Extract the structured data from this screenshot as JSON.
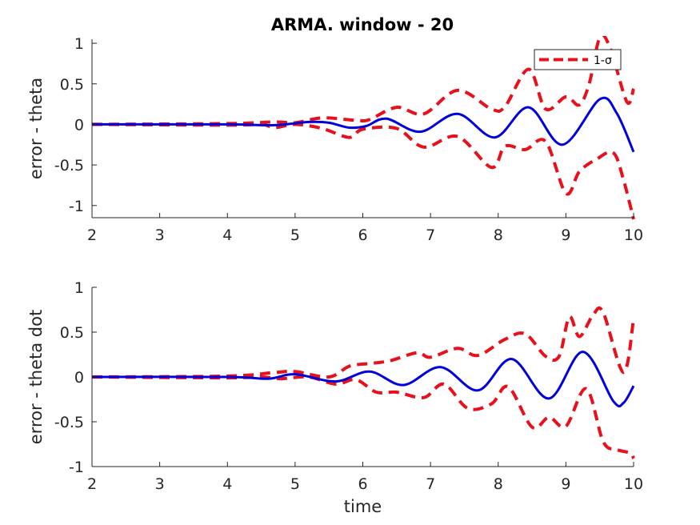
{
  "figure_title": "ARMA. window - 20",
  "colors": {
    "estimate": "#0000dd",
    "sigma": "#e8101a",
    "axis": "#262626"
  },
  "chart_data": [
    {
      "type": "line",
      "title": "ARMA. window - 20",
      "xlabel": "",
      "ylabel": "error - theta",
      "xlim": [
        2,
        10
      ],
      "ylim": [
        -1.15,
        1.05
      ],
      "xticks": [
        2,
        3,
        4,
        5,
        6,
        7,
        8,
        9,
        10
      ],
      "yticks": [
        -1,
        -0.5,
        0,
        0.5,
        1
      ],
      "legend": {
        "entries": [
          "1-σ"
        ],
        "location": "top-right"
      },
      "series": [
        {
          "name": "1-σ",
          "style": "dashed",
          "color": "#e8101a",
          "role": "upper",
          "x": [
            2,
            4.0,
            4.7,
            5.0,
            5.4,
            5.9,
            6.1,
            6.5,
            6.9,
            7.4,
            7.9,
            8.1,
            8.45,
            8.7,
            9.0,
            9.2,
            9.35,
            9.5,
            9.65,
            9.9,
            10.0
          ],
          "y": [
            0,
            0.01,
            0.03,
            0.02,
            0.08,
            0.05,
            0.06,
            0.21,
            0.13,
            0.42,
            0.19,
            0.22,
            0.68,
            0.19,
            0.34,
            0.24,
            0.52,
            1.07,
            0.95,
            0.28,
            0.44
          ]
        },
        {
          "name": "",
          "style": "dashed",
          "color": "#e8101a",
          "role": "lower",
          "x": [
            2,
            4.0,
            4.5,
            4.7,
            5.0,
            5.4,
            5.8,
            6.0,
            6.5,
            6.9,
            7.4,
            7.9,
            8.1,
            8.4,
            8.7,
            9.0,
            9.2,
            9.45,
            9.7,
            9.85,
            10.0
          ],
          "y": [
            0,
            -0.01,
            0.0,
            -0.04,
            0.0,
            -0.05,
            -0.16,
            -0.06,
            -0.05,
            -0.28,
            -0.15,
            -0.53,
            -0.27,
            -0.31,
            -0.21,
            -0.85,
            -0.58,
            -0.43,
            -0.35,
            -0.68,
            -1.17
          ]
        },
        {
          "name": "",
          "style": "solid",
          "color": "#0000dd",
          "role": "estimate",
          "x": [
            2,
            4.0,
            4.7,
            5.2,
            5.5,
            5.8,
            6.05,
            6.35,
            6.85,
            7.4,
            7.95,
            8.45,
            8.95,
            9.5,
            9.75,
            10.0
          ],
          "y": [
            0,
            0.0,
            -0.01,
            0.03,
            0.02,
            -0.04,
            -0.02,
            0.07,
            -0.09,
            0.13,
            -0.16,
            0.21,
            -0.25,
            0.31,
            0.14,
            -0.34
          ]
        }
      ]
    },
    {
      "type": "line",
      "title": "",
      "xlabel": "time",
      "ylabel": "error - theta dot",
      "xlim": [
        2,
        10
      ],
      "ylim": [
        -1,
        1
      ],
      "xticks": [
        2,
        3,
        4,
        5,
        6,
        7,
        8,
        9,
        10
      ],
      "yticks": [
        -1,
        -0.5,
        0,
        0.5,
        1
      ],
      "series": [
        {
          "name": "",
          "style": "dashed",
          "color": "#e8101a",
          "role": "upper",
          "x": [
            2,
            4.0,
            4.7,
            5.0,
            5.5,
            5.8,
            6.1,
            6.4,
            6.8,
            7.0,
            7.4,
            7.7,
            8.1,
            8.4,
            8.7,
            8.9,
            9.05,
            9.2,
            9.4,
            9.55,
            9.85,
            10.0
          ],
          "y": [
            0,
            0.01,
            0.05,
            0.06,
            0.0,
            0.12,
            0.15,
            0.18,
            0.27,
            0.22,
            0.32,
            0.24,
            0.42,
            0.48,
            0.23,
            0.23,
            0.67,
            0.45,
            0.69,
            0.72,
            0.05,
            0.65
          ]
        },
        {
          "name": "",
          "style": "dashed",
          "color": "#e8101a",
          "role": "lower",
          "x": [
            2,
            4.0,
            4.5,
            4.8,
            5.2,
            5.6,
            5.9,
            6.2,
            6.5,
            6.9,
            7.2,
            7.55,
            7.9,
            8.15,
            8.5,
            8.75,
            9.0,
            9.3,
            9.55,
            9.75,
            9.95,
            10.0
          ],
          "y": [
            0,
            -0.01,
            0.0,
            -0.02,
            0.0,
            -0.08,
            -0.03,
            -0.17,
            -0.17,
            -0.23,
            -0.08,
            -0.35,
            -0.3,
            -0.11,
            -0.56,
            -0.45,
            -0.55,
            -0.13,
            -0.72,
            -0.81,
            -0.85,
            -0.91
          ]
        },
        {
          "name": "",
          "style": "solid",
          "color": "#0000dd",
          "role": "estimate",
          "x": [
            2,
            4.0,
            4.6,
            5.0,
            5.6,
            6.1,
            6.6,
            7.15,
            7.7,
            8.2,
            8.75,
            9.25,
            9.7,
            9.85,
            10.0
          ],
          "y": [
            0,
            0.0,
            -0.02,
            0.03,
            -0.05,
            0.06,
            -0.09,
            0.11,
            -0.15,
            0.2,
            -0.24,
            0.28,
            -0.27,
            -0.29,
            -0.1
          ]
        }
      ]
    }
  ]
}
